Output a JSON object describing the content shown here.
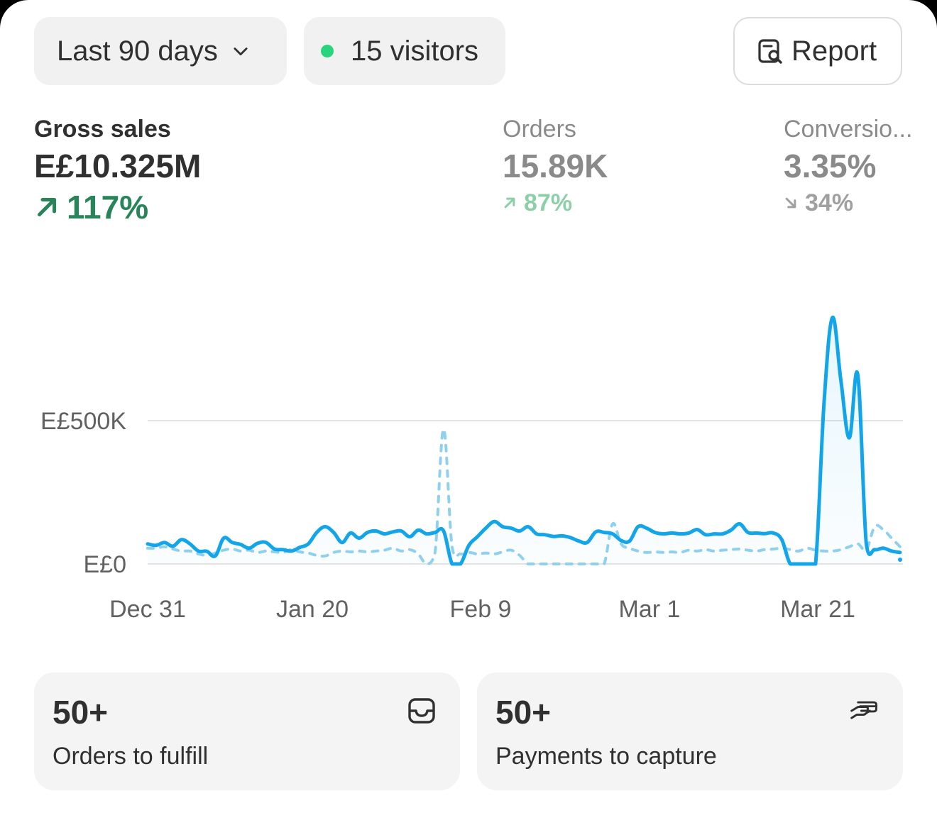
{
  "filters": {
    "date_range": "Last 90 days",
    "visitors": "15 visitors",
    "report_label": "Report",
    "visitor_dot_color": "#29d57c"
  },
  "metrics": [
    {
      "label": "Gross sales",
      "value": "E£10.325M",
      "change": "117%",
      "direction": "up"
    },
    {
      "label": "Orders",
      "value": "15.89K",
      "change": "87%",
      "direction": "up"
    },
    {
      "label": "Conversio...",
      "value": "3.35%",
      "change": "34%",
      "direction": "down"
    }
  ],
  "chart_data": {
    "type": "line",
    "x_ticks": [
      "Dec 31",
      "Jan 20",
      "Feb 9",
      "Mar 1",
      "Mar 21"
    ],
    "y_ticks": [
      "E£0",
      "E£500K"
    ],
    "y_tick_values": [
      0,
      500000
    ],
    "ylim": [
      0,
      900000
    ],
    "x_range": [
      "2023-12-31",
      "2024-03-29"
    ],
    "grid": true,
    "legend": "none",
    "colors": {
      "current": "#13a5e9",
      "comparison": "#8fd0ee"
    },
    "series": [
      {
        "style": "solid",
        "x": [
          "2023-12-31",
          "2024-01-01",
          "2024-01-02",
          "2024-01-03",
          "2024-01-04",
          "2024-01-05",
          "2024-01-06",
          "2024-01-07",
          "2024-01-08",
          "2024-01-09",
          "2024-01-10",
          "2024-01-11",
          "2024-01-12",
          "2024-01-13",
          "2024-01-14",
          "2024-01-15",
          "2024-01-16",
          "2024-01-17",
          "2024-01-18",
          "2024-01-19",
          "2024-01-20",
          "2024-01-21",
          "2024-01-22",
          "2024-01-23",
          "2024-01-24",
          "2024-01-25",
          "2024-01-26",
          "2024-01-27",
          "2024-01-28",
          "2024-01-29",
          "2024-01-30",
          "2024-01-31",
          "2024-02-01",
          "2024-02-02",
          "2024-02-03",
          "2024-02-04",
          "2024-02-05",
          "2024-02-06",
          "2024-02-07",
          "2024-02-08",
          "2024-02-09",
          "2024-02-10",
          "2024-02-11",
          "2024-02-12",
          "2024-02-13",
          "2024-02-14",
          "2024-02-15",
          "2024-02-16",
          "2024-02-17",
          "2024-02-18",
          "2024-02-19",
          "2024-02-20",
          "2024-02-21",
          "2024-02-22",
          "2024-02-23",
          "2024-02-24",
          "2024-02-25",
          "2024-02-26",
          "2024-02-27",
          "2024-02-28",
          "2024-02-29",
          "2024-03-01",
          "2024-03-02",
          "2024-03-03",
          "2024-03-04",
          "2024-03-05",
          "2024-03-06",
          "2024-03-07",
          "2024-03-08",
          "2024-03-09",
          "2024-03-10",
          "2024-03-11",
          "2024-03-12",
          "2024-03-13",
          "2024-03-14",
          "2024-03-15",
          "2024-03-16",
          "2024-03-17",
          "2024-03-18",
          "2024-03-19",
          "2024-03-20",
          "2024-03-21",
          "2024-03-22",
          "2024-03-23",
          "2024-03-24",
          "2024-03-25",
          "2024-03-26",
          "2024-03-27",
          "2024-03-28",
          "2024-03-29"
        ],
        "values": [
          70000,
          65000,
          75000,
          62000,
          85000,
          70000,
          45000,
          44000,
          28000,
          90000,
          75000,
          68000,
          55000,
          72000,
          75000,
          52000,
          50000,
          45000,
          58000,
          70000,
          110000,
          130000,
          110000,
          75000,
          108000,
          90000,
          110000,
          115000,
          105000,
          112000,
          115000,
          95000,
          118000,
          105000,
          110000,
          115000,
          0,
          0,
          65000,
          95000,
          125000,
          148000,
          130000,
          125000,
          115000,
          130000,
          105000,
          102000,
          96000,
          98000,
          92000,
          80000,
          75000,
          112000,
          110000,
          105000,
          82000,
          80000,
          130000,
          125000,
          110000,
          105000,
          108000,
          105000,
          108000,
          120000,
          102000,
          105000,
          105000,
          118000,
          140000,
          110000,
          108000,
          106000,
          108000,
          85000,
          0,
          0,
          0,
          0,
          560000,
          860000,
          640000,
          440000,
          660000,
          70000,
          50000,
          55000,
          45000,
          40000
        ]
      },
      {
        "style": "dashed",
        "x": [
          "2023-12-31",
          "2024-01-01",
          "2024-01-02",
          "2024-01-03",
          "2024-01-04",
          "2024-01-05",
          "2024-01-06",
          "2024-01-07",
          "2024-01-08",
          "2024-01-09",
          "2024-01-10",
          "2024-01-11",
          "2024-01-12",
          "2024-01-13",
          "2024-01-14",
          "2024-01-15",
          "2024-01-16",
          "2024-01-17",
          "2024-01-18",
          "2024-01-19",
          "2024-01-20",
          "2024-01-21",
          "2024-01-22",
          "2024-01-23",
          "2024-01-24",
          "2024-01-25",
          "2024-01-26",
          "2024-01-27",
          "2024-01-28",
          "2024-01-29",
          "2024-01-30",
          "2024-01-31",
          "2024-02-01",
          "2024-02-02",
          "2024-02-03",
          "2024-02-04",
          "2024-02-05",
          "2024-02-06",
          "2024-02-07",
          "2024-02-08",
          "2024-02-09",
          "2024-02-10",
          "2024-02-11",
          "2024-02-12",
          "2024-02-13",
          "2024-02-14",
          "2024-02-15",
          "2024-02-16",
          "2024-02-17",
          "2024-02-18",
          "2024-02-19",
          "2024-02-20",
          "2024-02-21",
          "2024-02-22",
          "2024-02-23",
          "2024-02-24",
          "2024-02-25",
          "2024-02-26",
          "2024-02-27",
          "2024-02-28",
          "2024-02-29",
          "2024-03-01",
          "2024-03-02",
          "2024-03-03",
          "2024-03-04",
          "2024-03-05",
          "2024-03-06",
          "2024-03-07",
          "2024-03-08",
          "2024-03-09",
          "2024-03-10",
          "2024-03-11",
          "2024-03-12",
          "2024-03-13",
          "2024-03-14",
          "2024-03-15",
          "2024-03-16",
          "2024-03-17",
          "2024-03-18",
          "2024-03-19",
          "2024-03-20",
          "2024-03-21",
          "2024-03-22",
          "2024-03-23",
          "2024-03-24",
          "2024-03-25",
          "2024-03-26",
          "2024-03-27",
          "2024-03-28",
          "2024-03-29"
        ],
        "values": [
          55000,
          55000,
          60000,
          52000,
          45000,
          45000,
          35000,
          30000,
          38000,
          48000,
          52000,
          45000,
          48000,
          40000,
          45000,
          42000,
          40000,
          50000,
          42000,
          38000,
          30000,
          28000,
          40000,
          45000,
          42000,
          45000,
          42000,
          45000,
          48000,
          55000,
          45000,
          50000,
          35000,
          0,
          40000,
          470000,
          60000,
          35000,
          40000,
          35000,
          38000,
          35000,
          42000,
          48000,
          30000,
          0,
          0,
          0,
          0,
          0,
          0,
          0,
          0,
          0,
          0,
          140000,
          70000,
          55000,
          45000,
          40000,
          42000,
          40000,
          42000,
          40000,
          48000,
          45000,
          50000,
          45000,
          48000,
          50000,
          52000,
          48000,
          45000,
          50000,
          52000,
          55000,
          50000,
          45000,
          55000,
          48000,
          45000,
          45000,
          50000,
          60000,
          70000,
          50000,
          130000,
          120000,
          90000,
          60000
        ]
      }
    ]
  },
  "tasks": [
    {
      "count": "50+",
      "label": "Orders to fulfill",
      "icon": "inbox-icon"
    },
    {
      "count": "50+",
      "label": "Payments to capture",
      "icon": "hand-card-icon"
    }
  ]
}
